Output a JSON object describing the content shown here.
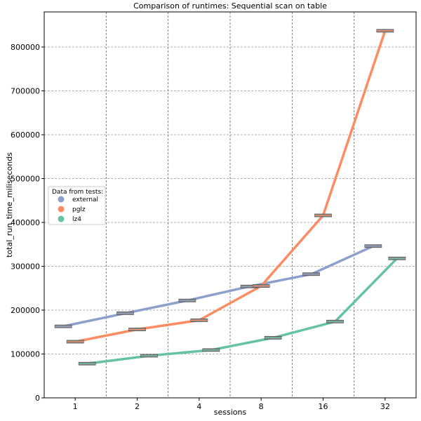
{
  "chart_data": {
    "type": "line",
    "title": "Comparison of runtimes: Sequential scan on table",
    "xlabel": "sessions",
    "ylabel": "total_run_time_miliseconds",
    "categories": [
      "1",
      "2",
      "4",
      "8",
      "16",
      "32"
    ],
    "yticks": [
      0,
      100000,
      200000,
      300000,
      400000,
      500000,
      600000,
      700000,
      800000
    ],
    "ytick_labels": [
      "0",
      "100000",
      "200000",
      "300000",
      "400000",
      "500000",
      "600000",
      "700000",
      "800000"
    ],
    "ylim": [
      0,
      880000
    ],
    "grid": "dashed",
    "legend_title": "Data from tests:",
    "legend_position": "center-left",
    "series": [
      {
        "name": "external",
        "color": "#8da0cb",
        "values": [
          163000,
          193000,
          222000,
          254000,
          282000,
          346000
        ]
      },
      {
        "name": "pglz",
        "color": "#fc8d62",
        "values": [
          128000,
          156000,
          177000,
          255000,
          416000,
          837000
        ]
      },
      {
        "name": "lz4",
        "color": "#66c2a5",
        "values": [
          78000,
          96000,
          109000,
          137000,
          174000,
          318000
        ]
      }
    ]
  }
}
